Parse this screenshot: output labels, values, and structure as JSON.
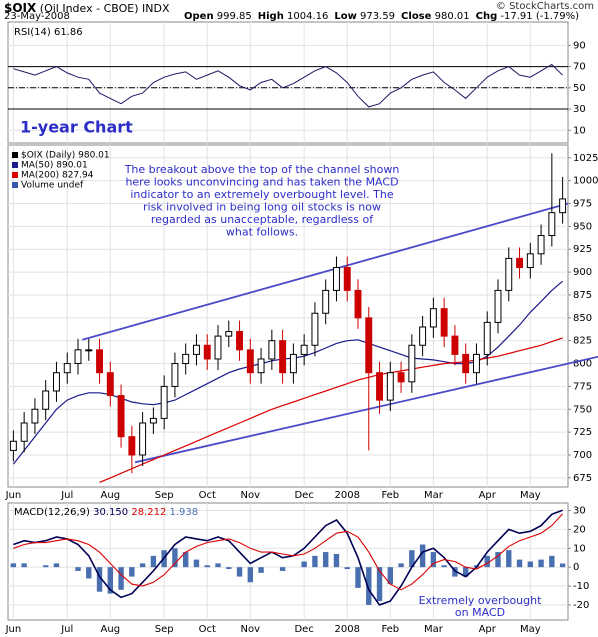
{
  "header": {
    "symbol": "$OIX",
    "name": "(Oil Index - CBOE) INDX",
    "date": "23-May-2008",
    "brand": "© StockCharts.com",
    "quote": [
      {
        "label": "Open",
        "value": "999.85"
      },
      {
        "label": "High",
        "value": "1004.16"
      },
      {
        "label": "Low",
        "value": "973.59"
      },
      {
        "label": "Close",
        "value": "980.01"
      },
      {
        "label": "Chg",
        "value": "-17.91 (-1.79%)"
      }
    ]
  },
  "chart_data": [
    {
      "type": "line",
      "title": "RSI(14) 61.86",
      "annotation": "1-year Chart",
      "ylim": [
        -2,
        112
      ],
      "yticks": [
        10,
        30,
        50,
        70,
        90
      ],
      "reference_lines": [
        {
          "value": 70,
          "style": "solid"
        },
        {
          "value": 50,
          "style": "dashdot"
        },
        {
          "value": 30,
          "style": "solid"
        }
      ],
      "series": [
        {
          "color": "#1a1a66",
          "values": [
            68,
            65,
            62,
            66,
            70,
            64,
            60,
            58,
            45,
            40,
            35,
            42,
            45,
            55,
            60,
            63,
            65,
            58,
            62,
            66,
            60,
            52,
            48,
            55,
            58,
            50,
            54,
            60,
            66,
            70,
            64,
            55,
            42,
            32,
            35,
            45,
            50,
            58,
            62,
            65,
            55,
            48,
            40,
            50,
            60,
            66,
            70,
            62,
            60,
            66,
            72,
            61.86
          ]
        }
      ]
    },
    {
      "type": "candlestick",
      "categories": [
        "Jun",
        null,
        null,
        null,
        null,
        "Jul",
        null,
        null,
        null,
        "Aug",
        null,
        null,
        null,
        null,
        "Sep",
        null,
        null,
        null,
        "Oct",
        null,
        null,
        null,
        "Nov",
        null,
        null,
        null,
        null,
        "Dec",
        null,
        null,
        null,
        "2008",
        null,
        null,
        null,
        "Feb",
        null,
        null,
        null,
        "Mar",
        null,
        null,
        null,
        null,
        "Apr",
        null,
        null,
        null,
        "May",
        null,
        null,
        null
      ],
      "ylim": [
        665,
        1039
      ],
      "yticks": [
        675,
        700,
        725,
        750,
        775,
        800,
        825,
        850,
        875,
        900,
        925,
        950,
        975,
        1000,
        1025
      ],
      "candles": {
        "name": "$OIX (Daily) 980.01",
        "up_color": "#000000",
        "down_color": "#cc0000",
        "open": [
          705,
          715,
          735,
          750,
          770,
          790,
          800,
          815,
          815,
          790,
          765,
          720,
          700,
          735,
          740,
          775,
          800,
          810,
          820,
          805,
          830,
          835,
          815,
          790,
          805,
          825,
          790,
          810,
          820,
          855,
          880,
          905,
          880,
          850,
          790,
          760,
          790,
          780,
          820,
          840,
          860,
          830,
          810,
          790,
          810,
          845,
          880,
          915,
          905,
          920,
          940,
          965
        ],
        "high": [
          727,
          747,
          762,
          782,
          802,
          812,
          827,
          827,
          827,
          802,
          777,
          732,
          747,
          752,
          787,
          812,
          822,
          832,
          832,
          842,
          847,
          847,
          827,
          817,
          837,
          837,
          822,
          832,
          867,
          892,
          917,
          917,
          892,
          862,
          802,
          802,
          802,
          832,
          852,
          872,
          872,
          842,
          822,
          822,
          857,
          892,
          927,
          927,
          932,
          952,
          1030,
          1004.16
        ],
        "low": [
          693,
          703,
          723,
          738,
          758,
          778,
          788,
          803,
          778,
          753,
          708,
          680,
          688,
          723,
          728,
          763,
          788,
          798,
          793,
          793,
          818,
          803,
          778,
          778,
          793,
          778,
          778,
          798,
          808,
          843,
          868,
          868,
          838,
          705,
          745,
          748,
          768,
          768,
          808,
          828,
          818,
          798,
          778,
          778,
          798,
          833,
          868,
          893,
          893,
          908,
          928,
          953
        ],
        "close": [
          715,
          735,
          750,
          770,
          790,
          800,
          815,
          815,
          790,
          765,
          720,
          700,
          735,
          740,
          775,
          800,
          810,
          820,
          805,
          830,
          835,
          815,
          790,
          805,
          825,
          790,
          810,
          820,
          855,
          880,
          905,
          880,
          850,
          790,
          760,
          790,
          780,
          820,
          840,
          860,
          830,
          810,
          790,
          810,
          845,
          880,
          915,
          905,
          920,
          940,
          965,
          980.01
        ]
      },
      "series": [
        {
          "name": "MA(50) 890.01",
          "color": "#1a1a8c",
          "values": [
            690,
            705,
            720,
            735,
            750,
            760,
            765,
            768,
            768,
            766,
            762,
            758,
            756,
            755,
            757,
            760,
            766,
            772,
            778,
            784,
            790,
            794,
            797,
            800,
            803,
            805,
            806,
            808,
            812,
            817,
            822,
            825,
            826,
            822,
            818,
            814,
            810,
            806,
            805,
            804,
            802,
            800,
            800,
            802,
            808,
            818,
            830,
            842,
            856,
            868,
            880,
            890.01
          ]
        },
        {
          "name": "MA(200) 827.94",
          "color": "#dd0000",
          "values": [
            null,
            null,
            null,
            null,
            null,
            null,
            null,
            null,
            670,
            675,
            680,
            685,
            690,
            695,
            700,
            705,
            710,
            715,
            720,
            725,
            730,
            735,
            740,
            745,
            750,
            754,
            758,
            762,
            766,
            770,
            774,
            778,
            782,
            785,
            788,
            790,
            792,
            794,
            796,
            798,
            800,
            801,
            802,
            804,
            806,
            808,
            811,
            814,
            817,
            820,
            824,
            827.94
          ]
        }
      ],
      "legend_extra": {
        "name": "Volume undef",
        "color": "#3355aa"
      },
      "trendlines": [
        {
          "x": [
            6.4,
            51.5
          ],
          "values": [
            826,
            975
          ],
          "color": "#4a4ac8"
        },
        {
          "x": [
            11.3,
            54.5
          ],
          "values": [
            692,
            808
          ],
          "color": "#4a4ac8"
        }
      ],
      "annotation_lines": [
        "The breakout above the top of the channel shown",
        "here looks unconvincing and has taken the MACD",
        "indicator to an extremely overbought level. The",
        "risk involved in being long oil stocks is now",
        "regarded as unacceptable, regardless of",
        "what follows."
      ]
    },
    {
      "type": "macd",
      "title": "MACD(12,26,9)",
      "ylim": [
        -28,
        34
      ],
      "yticks": [
        -20,
        -10,
        0,
        10,
        20,
        30
      ],
      "annotation_lines": [
        "Extremely overbought",
        "on MACD"
      ],
      "series": [
        {
          "name": "30.150",
          "color": "#000055",
          "values": [
            12,
            14,
            13,
            14,
            16,
            15,
            12,
            6,
            -5,
            -12,
            -16,
            -14,
            -8,
            -2,
            5,
            12,
            16,
            15,
            14,
            16,
            14,
            8,
            2,
            5,
            8,
            5,
            6,
            10,
            16,
            22,
            25,
            18,
            5,
            -12,
            -20,
            -18,
            -10,
            0,
            8,
            10,
            5,
            -2,
            -5,
            0,
            8,
            14,
            20,
            18,
            19,
            22,
            28,
            30.15
          ]
        },
        {
          "name": "28.212",
          "color": "#dd0000",
          "values": [
            10,
            12,
            13,
            13,
            14,
            15,
            14,
            12,
            8,
            2,
            -4,
            -9,
            -10,
            -8,
            -4,
            2,
            8,
            11,
            13,
            14,
            15,
            13,
            10,
            8,
            8,
            7,
            6,
            7,
            10,
            14,
            18,
            19,
            16,
            8,
            -2,
            -9,
            -12,
            -9,
            -4,
            2,
            4,
            3,
            0,
            -1,
            2,
            6,
            11,
            14,
            16,
            18,
            22,
            28.212
          ]
        },
        {
          "name": "1.938",
          "color": "#4a6fb0",
          "histogram": true,
          "values": [
            2,
            2,
            0,
            1,
            2,
            0,
            -2,
            -6,
            -13,
            -14,
            -12,
            -5,
            2,
            6,
            9,
            10,
            8,
            4,
            1,
            2,
            -1,
            -5,
            -8,
            -3,
            0,
            -2,
            0,
            3,
            6,
            8,
            7,
            -1,
            -11,
            -20,
            -18,
            -9,
            2,
            9,
            12,
            8,
            1,
            -5,
            -5,
            1,
            6,
            8,
            9,
            4,
            3,
            4,
            6,
            1.938
          ]
        }
      ]
    }
  ]
}
